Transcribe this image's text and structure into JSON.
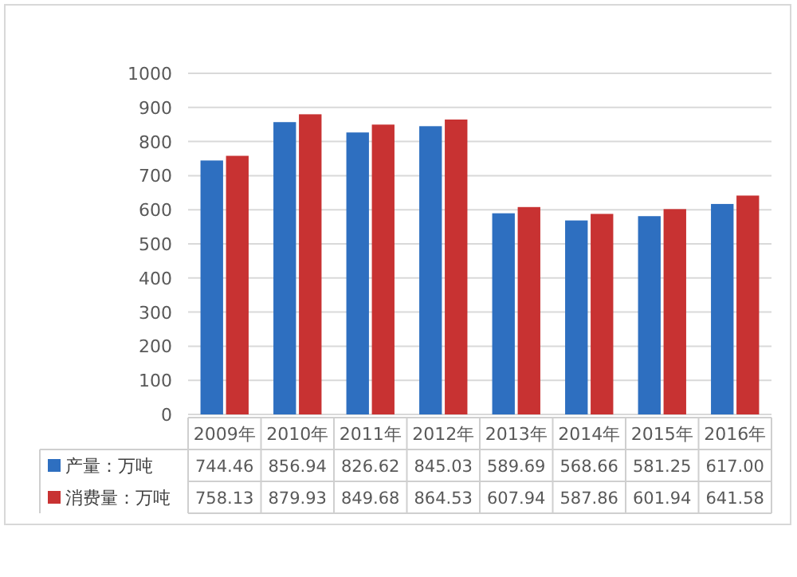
{
  "chart_data": {
    "type": "bar",
    "categories": [
      "2009年",
      "2010年",
      "2011年",
      "2012年",
      "2013年",
      "2014年",
      "2015年",
      "2016年"
    ],
    "series": [
      {
        "name": "产量：万吨",
        "color": "#2e6fc0",
        "values": [
          744.46,
          856.94,
          826.62,
          845.03,
          589.69,
          568.66,
          581.25,
          617.0
        ],
        "value_labels": [
          "744.46",
          "856.94",
          "826.62",
          "845.03",
          "589.69",
          "568.66",
          "581.25",
          "617.00"
        ]
      },
      {
        "name": "消费量：万吨",
        "color": "#c83232",
        "values": [
          758.13,
          879.93,
          849.68,
          864.53,
          607.94,
          587.86,
          601.94,
          641.58
        ],
        "value_labels": [
          "758.13",
          "879.93",
          "849.68",
          "864.53",
          "607.94",
          "587.86",
          "601.94",
          "641.58"
        ]
      }
    ],
    "ylim": [
      0,
      1000
    ],
    "yticks": [
      0,
      100,
      200,
      300,
      400,
      500,
      600,
      700,
      800,
      900,
      1000
    ],
    "grid": "y",
    "legend": "bottom"
  }
}
